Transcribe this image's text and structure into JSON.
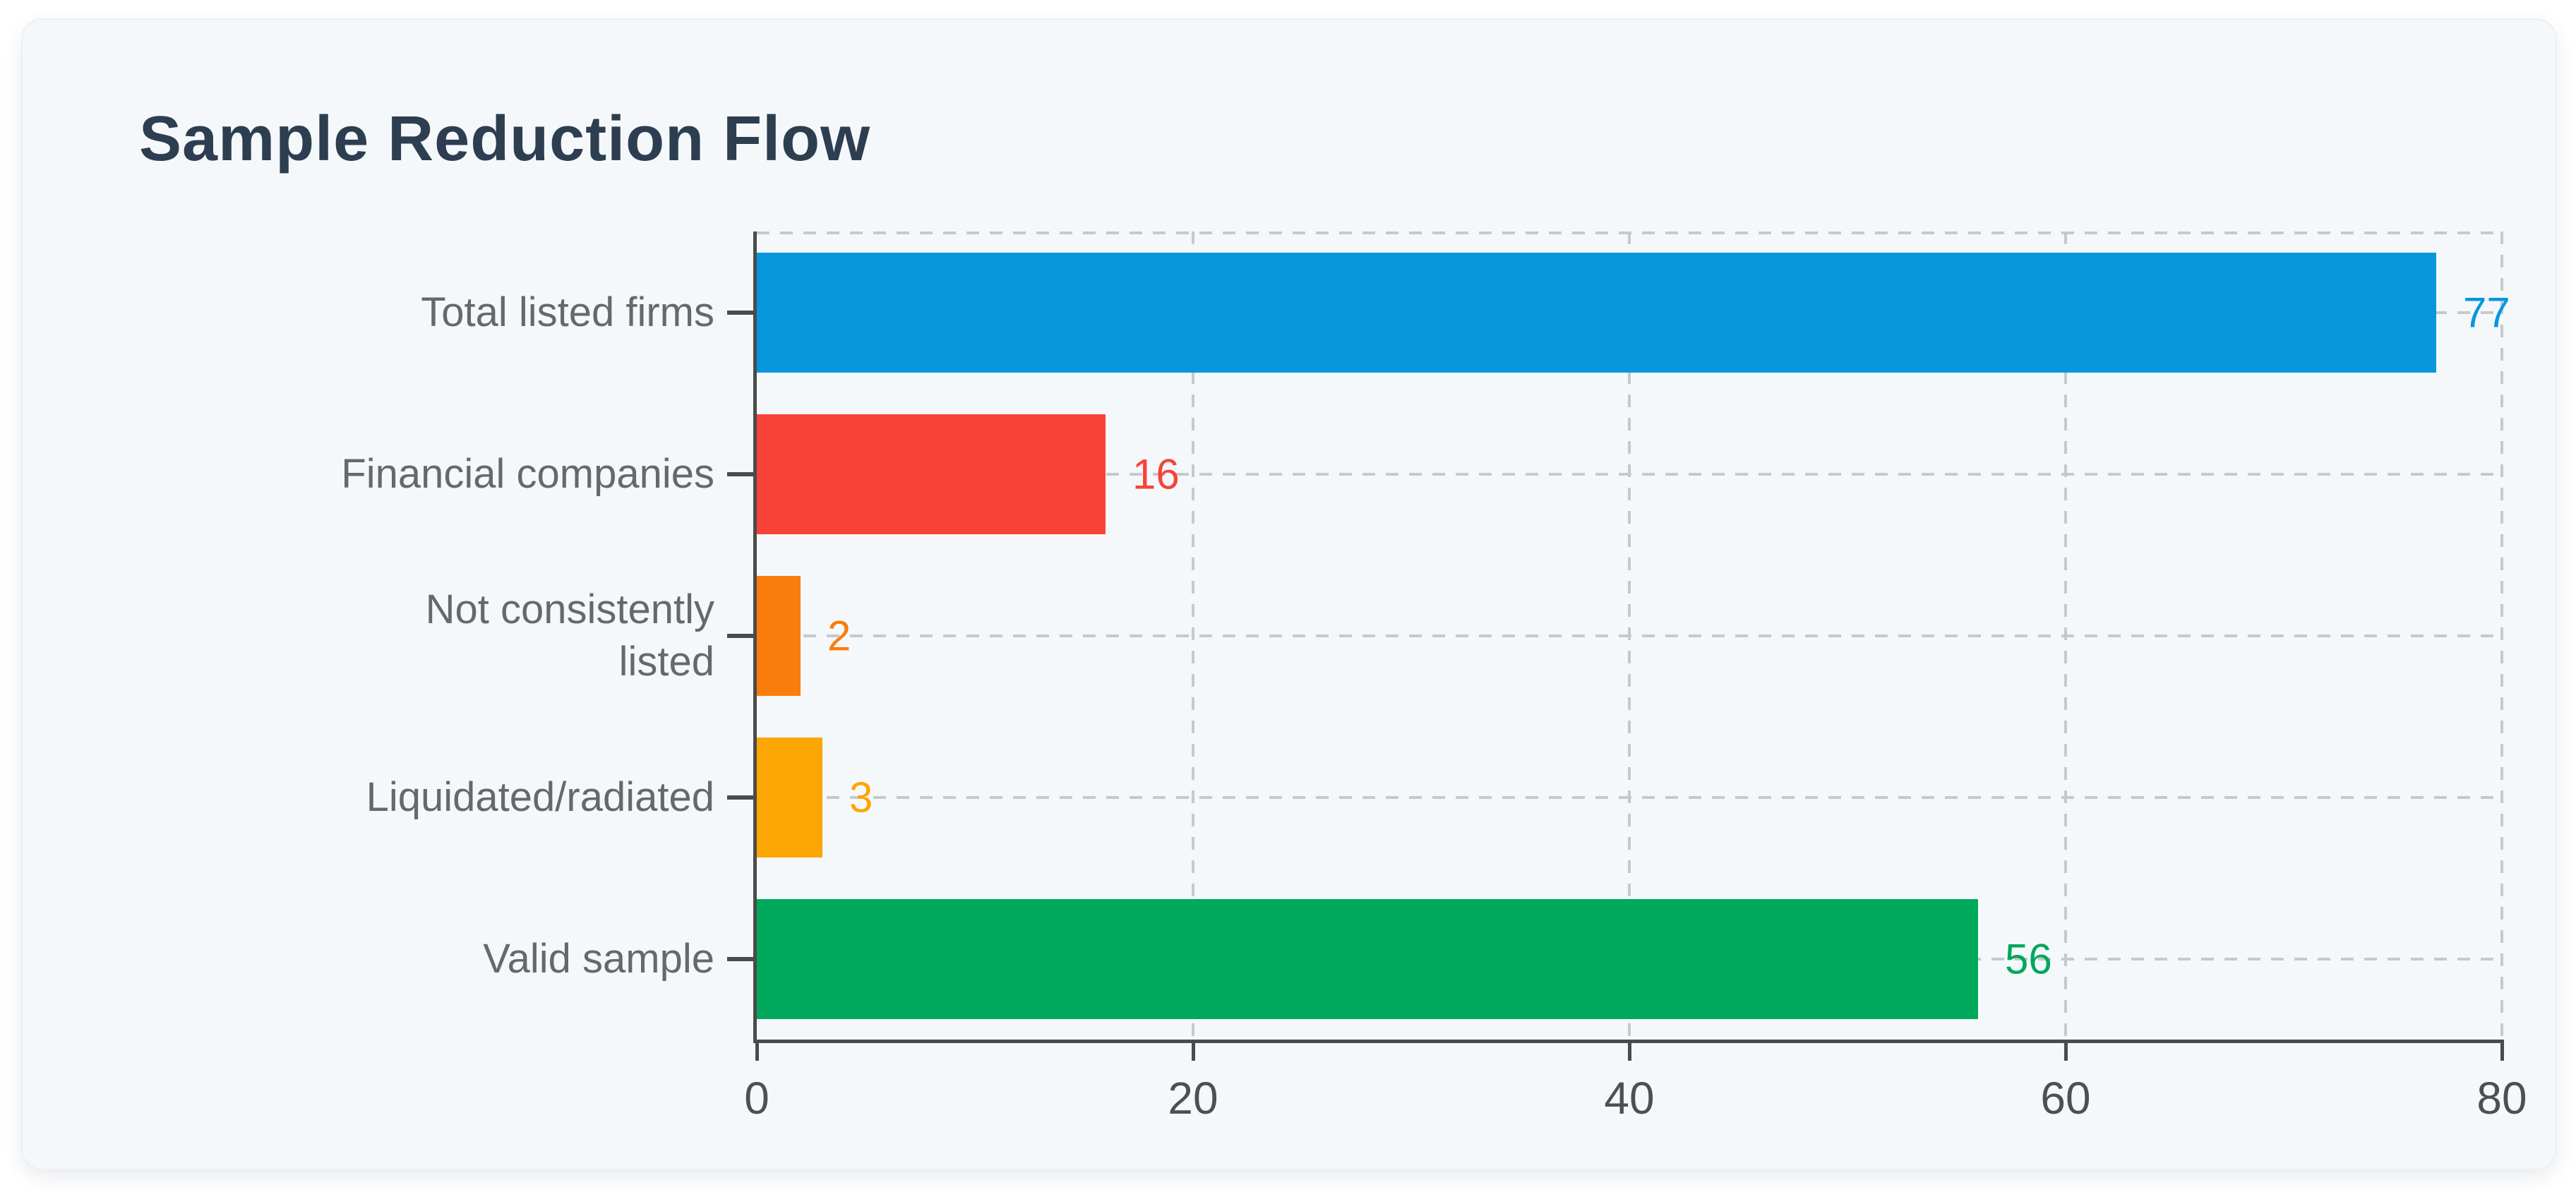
{
  "title": "Sample Reduction Flow",
  "theme": {
    "page_bg": "#ffffff",
    "card_bg": "#f5f8fb",
    "title_color": "#2d3e50",
    "label_color": "#686868",
    "tick_label_color": "#4f4f4f",
    "axis_color": "#4b4b4b",
    "grid_color": "#c5c9cd"
  },
  "chart_data": {
    "type": "bar",
    "orientation": "horizontal",
    "title": "Sample Reduction Flow",
    "categories": [
      "Total listed firms",
      "Financial companies",
      "Not consistently\nlisted",
      "Liquidated/radiated",
      "Valid sample"
    ],
    "values": [
      77,
      16,
      2,
      3,
      56
    ],
    "bar_colors": [
      "#0897dd",
      "#f94338",
      "#f97d0c",
      "#fda502",
      "#00a85c"
    ],
    "value_label_colors": [
      "#0897dd",
      "#f94338",
      "#f97d0c",
      "#fda502",
      "#00a85c"
    ],
    "xlabel": "",
    "ylabel": "",
    "xlim": [
      0,
      80
    ],
    "x_ticks": [
      0,
      20,
      40,
      60,
      80
    ],
    "grid": "dashed",
    "grid_axes": "both",
    "legend": null,
    "value_labels": true
  }
}
